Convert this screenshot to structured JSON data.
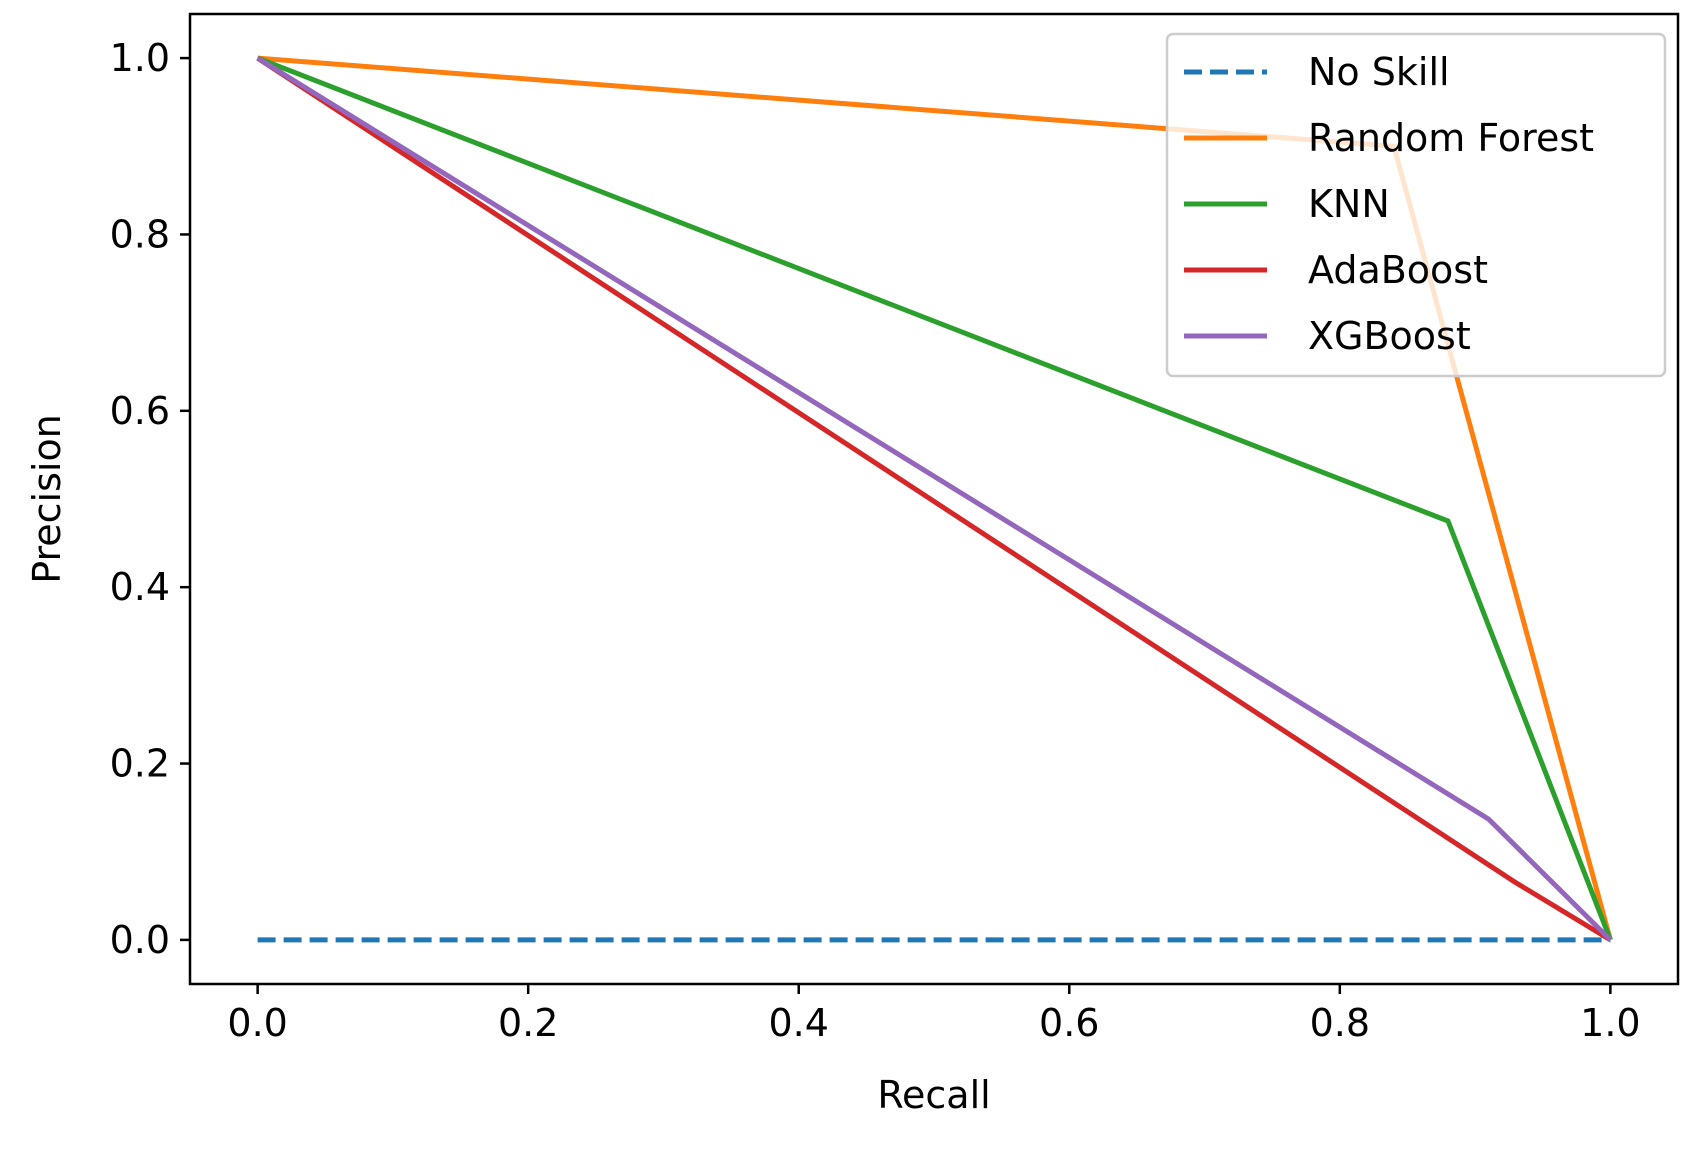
{
  "chart_data": {
    "type": "line",
    "xlabel": "Recall",
    "ylabel": "Precision",
    "xlim": [
      -0.05,
      1.05
    ],
    "ylim": [
      -0.05,
      1.05
    ],
    "xticks": [
      0.0,
      0.2,
      0.4,
      0.6,
      0.8,
      1.0
    ],
    "yticks": [
      0.0,
      0.2,
      0.4,
      0.6,
      0.8,
      1.0
    ],
    "xtick_labels": [
      "0.0",
      "0.2",
      "0.4",
      "0.6",
      "0.8",
      "1.0"
    ],
    "ytick_labels": [
      "0.0",
      "0.2",
      "0.4",
      "0.6",
      "0.8",
      "1.0"
    ],
    "grid": false,
    "legend_position": "top-right",
    "series": [
      {
        "name": "No Skill",
        "color": "#1f77b4",
        "dashed": true,
        "x": [
          0.0,
          1.0
        ],
        "y": [
          0.0,
          0.0
        ]
      },
      {
        "name": "Random Forest",
        "color": "#ff7f0e",
        "dashed": false,
        "x": [
          0.0,
          0.84,
          1.0
        ],
        "y": [
          1.0,
          0.9,
          0.0
        ]
      },
      {
        "name": "KNN",
        "color": "#2ca02c",
        "dashed": false,
        "x": [
          0.0,
          0.88,
          1.0
        ],
        "y": [
          1.0,
          0.475,
          0.0
        ]
      },
      {
        "name": "AdaBoost",
        "color": "#d62728",
        "dashed": false,
        "x": [
          0.0,
          0.93,
          1.0
        ],
        "y": [
          1.0,
          0.065,
          0.0
        ]
      },
      {
        "name": "XGBoost",
        "color": "#9467bd",
        "dashed": false,
        "x": [
          0.0,
          0.91,
          1.0
        ],
        "y": [
          1.0,
          0.137,
          0.0
        ]
      }
    ]
  }
}
